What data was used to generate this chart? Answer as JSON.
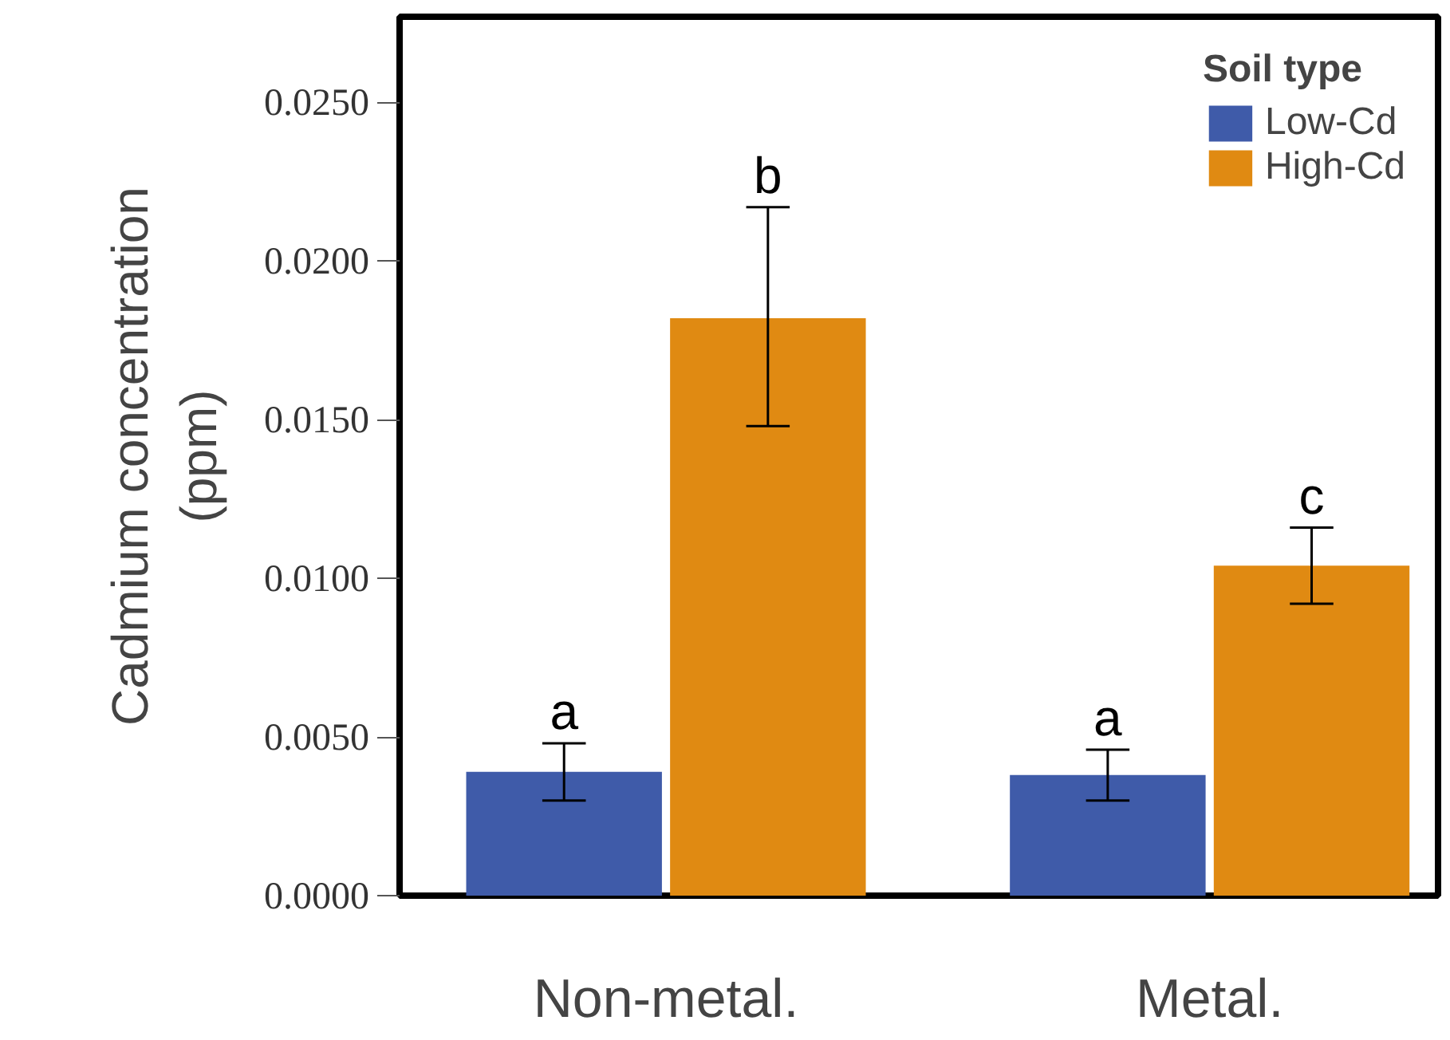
{
  "chart_data": {
    "type": "bar",
    "ylabel": "Cadmium concentration\n(ppm)",
    "legend_title": "Soil type",
    "categories": [
      "Non-metal.",
      "Metal."
    ],
    "series": [
      {
        "name": "Low-Cd",
        "color": "#3f5ba9",
        "values": [
          0.0039,
          0.0038
        ],
        "errors": [
          [
            0.003,
            0.0048
          ],
          [
            0.003,
            0.0046
          ]
        ]
      },
      {
        "name": "High-Cd",
        "color": "#e08a12",
        "values": [
          0.0182,
          0.0104
        ],
        "errors": [
          [
            0.0148,
            0.0217
          ],
          [
            0.0092,
            0.0116
          ]
        ]
      }
    ],
    "annotations": [
      "a",
      "a",
      "b",
      "c"
    ],
    "ylim": [
      0,
      0.0277
    ],
    "yticks": [
      {
        "value": 0,
        "label": "0.0000"
      },
      {
        "value": 0.005,
        "label": "0.0050"
      },
      {
        "value": 0.01,
        "label": "0.0100"
      },
      {
        "value": 0.015,
        "label": "0.0150"
      },
      {
        "value": 0.02,
        "label": "0.0200"
      },
      {
        "value": 0.025,
        "label": "0.0250"
      }
    ],
    "grid": false,
    "legend": "top right"
  }
}
